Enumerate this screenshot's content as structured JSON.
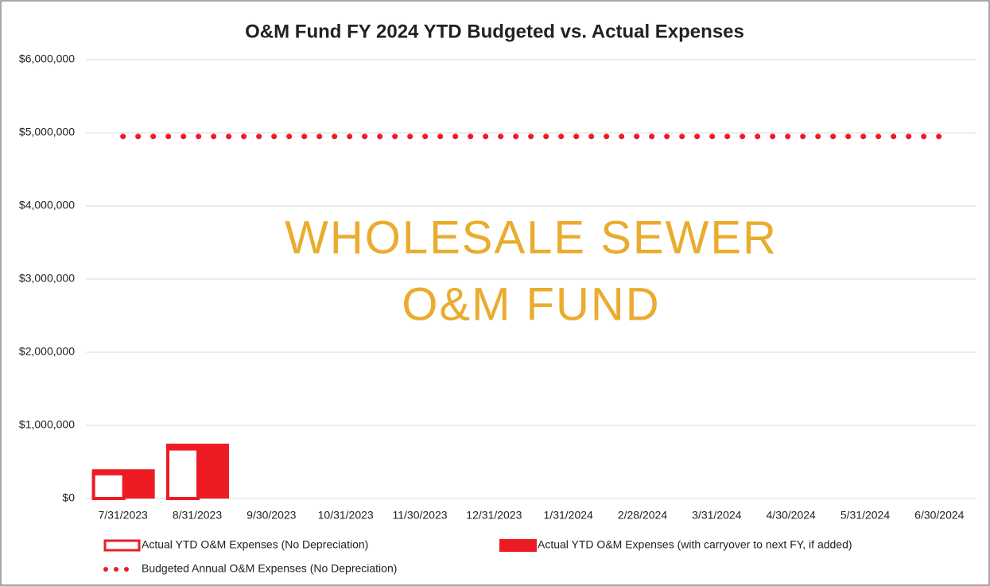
{
  "chart_data": {
    "type": "bar",
    "title": "O&M Fund FY 2024 YTD Budgeted vs. Actual Expenses",
    "watermark": [
      "WHOLESALE SEWER",
      "O&M FUND"
    ],
    "categories": [
      "7/31/2023",
      "8/31/2023",
      "9/30/2023",
      "10/31/2023",
      "11/30/2023",
      "12/31/2023",
      "1/31/2024",
      "2/28/2024",
      "3/31/2024",
      "4/30/2024",
      "5/31/2024",
      "6/30/2024"
    ],
    "series": [
      {
        "name": "Actual YTD O&M Expenses (No Depreciation)",
        "color": "#ed1c24",
        "style": "outline",
        "values": [
          360000,
          700000,
          null,
          null,
          null,
          null,
          null,
          null,
          null,
          null,
          null,
          null
        ]
      },
      {
        "name": "Actual YTD O&M Expenses (with carryover to next FY, if added)",
        "color": "#ed1c24",
        "style": "filled",
        "values": [
          400000,
          750000,
          null,
          null,
          null,
          null,
          null,
          null,
          null,
          null,
          null,
          null
        ]
      },
      {
        "name": "Budgeted Annual O&M Expenses (No Depreciation)",
        "color": "#ed1c24",
        "style": "dotted-line",
        "values": [
          4950000,
          4950000,
          4950000,
          4950000,
          4950000,
          4950000,
          4950000,
          4950000,
          4950000,
          4950000,
          4950000,
          4950000
        ]
      }
    ],
    "ylim": [
      0,
      6000000
    ],
    "yticks": [
      {
        "value": 0,
        "label": "$0"
      },
      {
        "value": 1000000,
        "label": "$1,000,000"
      },
      {
        "value": 2000000,
        "label": "$2,000,000"
      },
      {
        "value": 3000000,
        "label": "$3,000,000"
      },
      {
        "value": 4000000,
        "label": "$4,000,000"
      },
      {
        "value": 5000000,
        "label": "$5,000,000"
      },
      {
        "value": 6000000,
        "label": "$6,000,000"
      }
    ],
    "grid": true
  }
}
